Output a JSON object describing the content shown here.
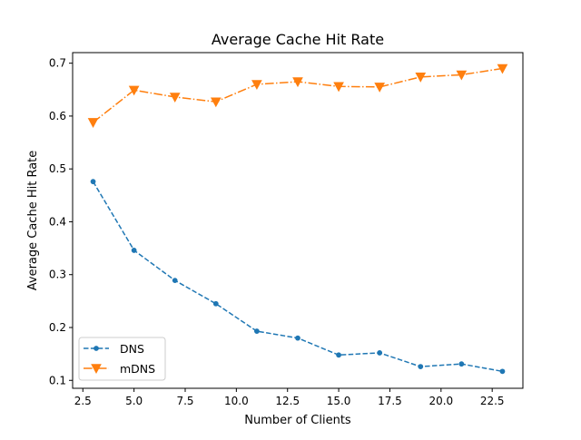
{
  "chart_data": {
    "type": "line",
    "title": "Average Cache Hit Rate",
    "xlabel": "Number of Clients",
    "ylabel": "Average Cache Hit Rate",
    "xlim": [
      2.0,
      24.0
    ],
    "ylim": [
      0.085,
      0.72
    ],
    "xticks": [
      2.5,
      5.0,
      7.5,
      10.0,
      12.5,
      15.0,
      17.5,
      20.0,
      22.5
    ],
    "xtick_labels": [
      "2.5",
      "5.0",
      "7.5",
      "10.0",
      "12.5",
      "15.0",
      "17.5",
      "20.0",
      "22.5"
    ],
    "yticks": [
      0.1,
      0.2,
      0.3,
      0.4,
      0.5,
      0.6,
      0.7
    ],
    "ytick_labels": [
      "0.1",
      "0.2",
      "0.3",
      "0.4",
      "0.5",
      "0.6",
      "0.7"
    ],
    "grid": false,
    "legend_position": "lower-left",
    "x": [
      3,
      5,
      7,
      9,
      11,
      13,
      15,
      17,
      19,
      21,
      23
    ],
    "series": [
      {
        "name": "DNS",
        "color": "#1f77b4",
        "linestyle": "dashed",
        "marker": "point",
        "values": [
          0.476,
          0.346,
          0.289,
          0.245,
          0.193,
          0.18,
          0.148,
          0.152,
          0.126,
          0.131,
          0.117
        ]
      },
      {
        "name": "mDNS",
        "color": "#ff7f0e",
        "linestyle": "dashdot",
        "marker": "triangle-down",
        "values": [
          0.588,
          0.649,
          0.636,
          0.627,
          0.66,
          0.665,
          0.656,
          0.655,
          0.674,
          0.678,
          0.69
        ]
      }
    ]
  }
}
